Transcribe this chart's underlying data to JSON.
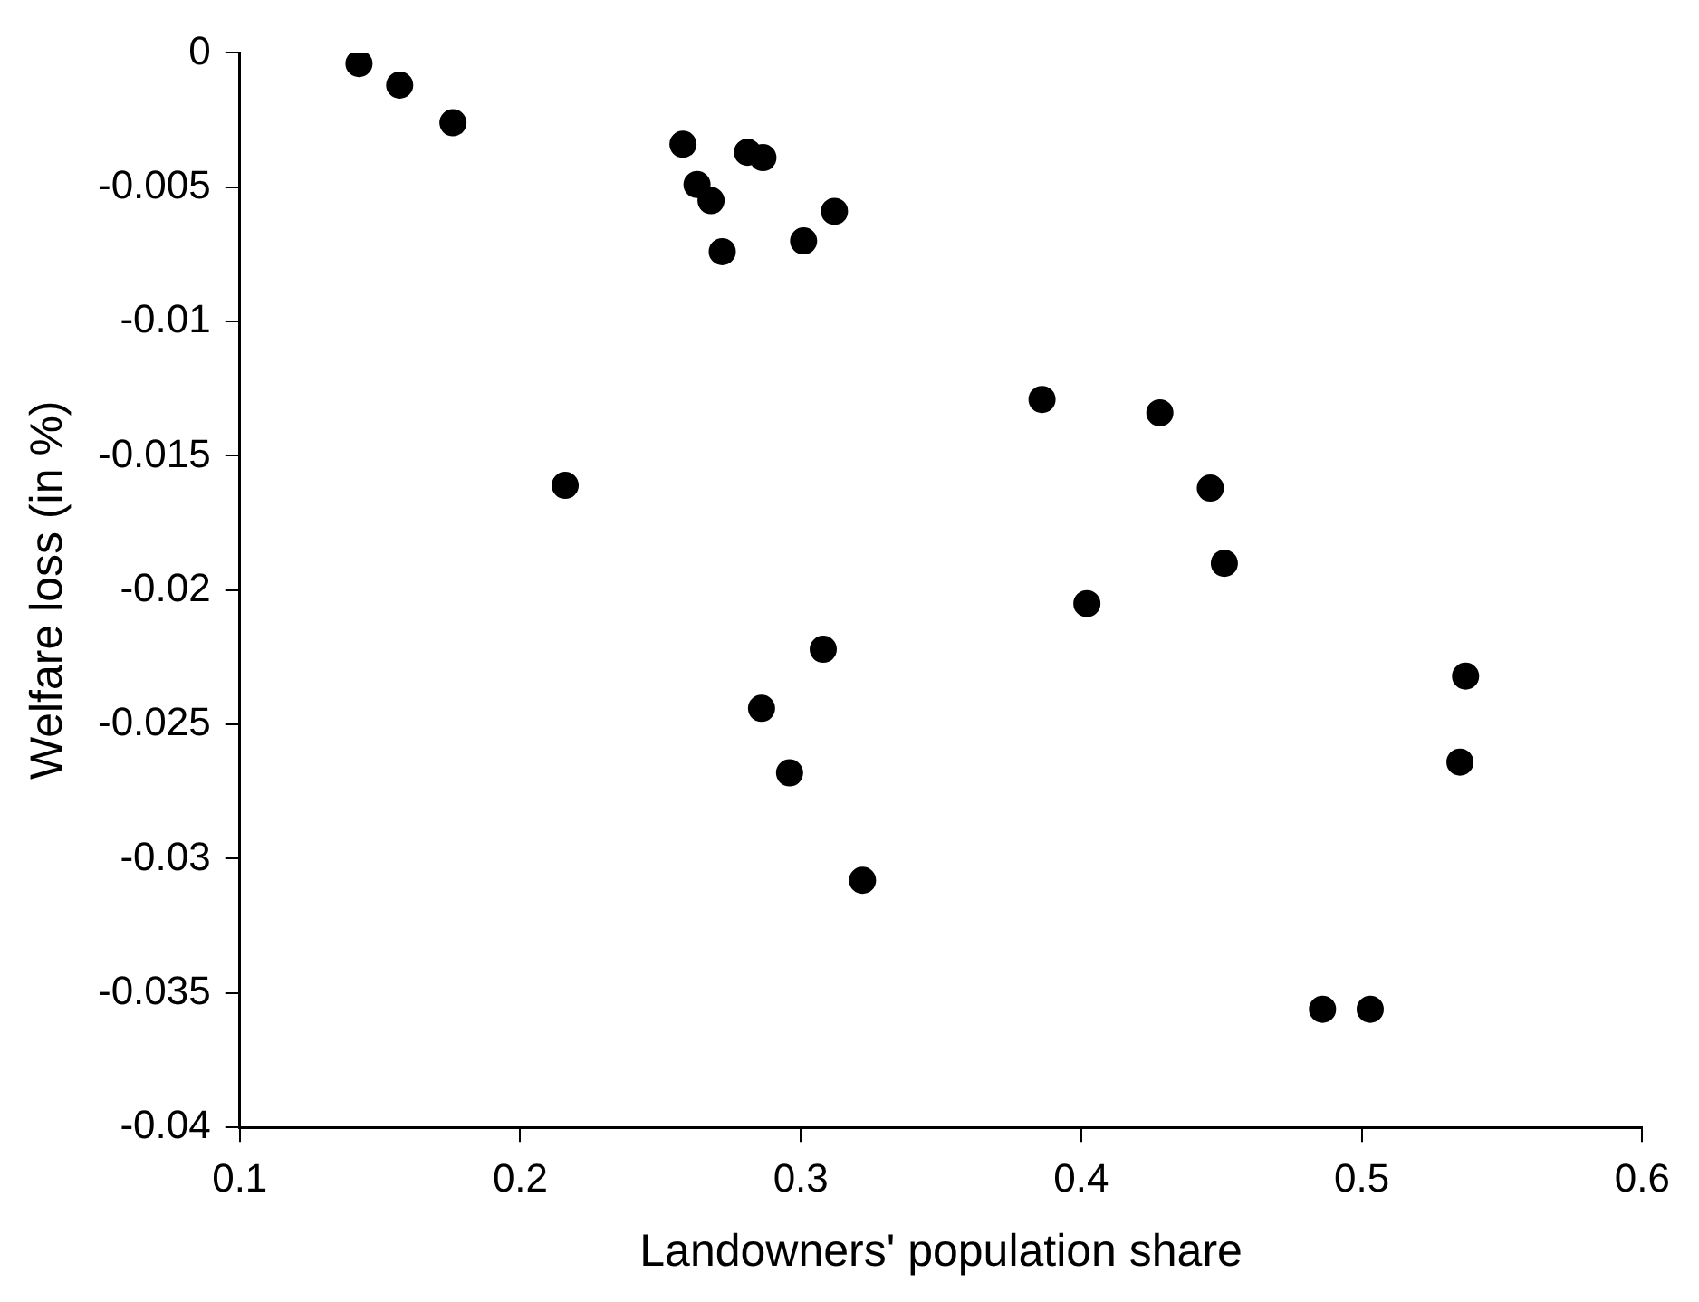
{
  "chart_data": {
    "type": "scatter",
    "xlabel": "Landowners' population share",
    "ylabel": "Welfare loss (in %)",
    "x": [
      0.1425,
      0.157,
      0.176,
      0.258,
      0.281,
      0.2865,
      0.263,
      0.268,
      0.312,
      0.301,
      0.272,
      0.216,
      0.386,
      0.428,
      0.446,
      0.451,
      0.402,
      0.308,
      0.286,
      0.296,
      0.322,
      0.537,
      0.535,
      0.486,
      0.503
    ],
    "series": [
      {
        "color": "#000000",
        "values": [
          -0.0004,
          -0.0012,
          -0.0026,
          -0.0034,
          -0.0037,
          -0.0039,
          -0.0049,
          -0.0055,
          -0.0059,
          -0.007,
          -0.0074,
          -0.0161,
          -0.0129,
          -0.0134,
          -0.0162,
          -0.019,
          -0.0205,
          -0.0222,
          -0.0244,
          -0.0268,
          -0.0308,
          -0.0232,
          -0.0264,
          -0.0356,
          -0.0356
        ]
      }
    ],
    "xlim": [
      0.1,
      0.6
    ],
    "xticks": [
      0.1,
      0.2,
      0.3,
      0.4,
      0.5,
      0.6
    ],
    "ylim": [
      -0.04,
      0
    ],
    "yticks": [
      -0.04,
      -0.035,
      -0.03,
      -0.025,
      -0.02,
      -0.015,
      -0.01,
      -0.005,
      0
    ],
    "marker": "circle",
    "grid": false,
    "legend": false
  }
}
